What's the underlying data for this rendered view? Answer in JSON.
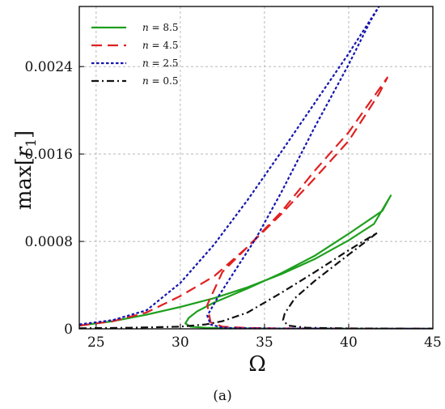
{
  "chart_data": {
    "type": "line",
    "title": "",
    "xlabel": "Ω",
    "ylabel_parts": [
      "max[",
      "r",
      "1",
      "]"
    ],
    "caption": "(a)",
    "xlim": [
      24,
      45
    ],
    "ylim": [
      0,
      0.00295
    ],
    "xticks": [
      25,
      30,
      35,
      40,
      45
    ],
    "xtick_labels": [
      "25",
      "30",
      "35",
      "40",
      "45"
    ],
    "yticks": [
      0,
      0.0008,
      0.0016,
      0.0024
    ],
    "ytick_labels": [
      "0",
      "0.0008",
      "0.0016",
      "0.0024"
    ],
    "grid": true,
    "legend_position": "top-left",
    "series": [
      {
        "name": "n = 8.5",
        "label_var": "n",
        "label_val": "= 8.5",
        "color": "#1ea01e",
        "dash": "",
        "x": [
          24,
          26,
          28,
          30,
          32,
          34,
          36,
          38,
          40,
          41.5,
          42.5,
          42,
          40,
          38,
          36,
          34,
          32,
          31,
          30.5,
          30.3,
          30.6,
          31.5,
          33,
          35,
          38,
          42,
          45
        ],
        "y": [
          3e-05,
          7e-05,
          0.00013,
          0.0002,
          0.00028,
          0.00038,
          0.0005,
          0.00064,
          0.00081,
          0.00096,
          0.00122,
          0.00108,
          0.00087,
          0.00067,
          0.00051,
          0.00037,
          0.00024,
          0.00016,
          0.0001,
          5e-05,
          2e-05,
          1e-05,
          5e-06,
          3e-06,
          2e-06,
          1e-06,
          1e-06
        ]
      },
      {
        "name": "n = 4.5",
        "label_var": "n",
        "label_val": "= 4.5",
        "color": "#e02020",
        "dash": "13 7",
        "x": [
          24,
          26,
          28,
          30,
          32,
          34,
          36,
          38,
          40,
          42.3,
          41.8,
          40,
          38,
          36,
          34,
          32.5,
          31.6,
          31.8,
          32.5,
          34,
          36,
          40,
          45
        ],
        "y": [
          3e-05,
          7e-05,
          0.00015,
          0.0003,
          0.00048,
          0.00075,
          0.00107,
          0.00145,
          0.0018,
          0.0023,
          0.00215,
          0.00172,
          0.00138,
          0.00105,
          0.00075,
          0.00052,
          0.00022,
          6e-05,
          2e-05,
          8e-06,
          4e-06,
          2e-06,
          1e-06
        ]
      },
      {
        "name": "n = 2.5",
        "label_var": "n",
        "label_val": "= 2.5",
        "color": "#1515b0",
        "dash": "3.5 2.5",
        "x": [
          24,
          26,
          28,
          30,
          32,
          34,
          36,
          38,
          40,
          41.8,
          41.3,
          40,
          38,
          36,
          34.5,
          33.2,
          32.2,
          31.6,
          31.8,
          32.5,
          34,
          36,
          40,
          45
        ],
        "y": [
          4e-05,
          8e-05,
          0.00017,
          0.00042,
          0.00077,
          0.00118,
          0.00162,
          0.00207,
          0.00252,
          0.00295,
          0.00282,
          0.00242,
          0.00185,
          0.00125,
          0.00083,
          0.00052,
          0.00028,
          0.00012,
          4e-05,
          1e-05,
          5e-06,
          3e-06,
          2e-06,
          1e-06
        ]
      },
      {
        "name": "n = 0.5",
        "label_var": "n",
        "label_val": "= 0.5",
        "color": "#111111",
        "dash": "9 4 2 4",
        "x": [
          24,
          27,
          30,
          31.5,
          32.5,
          34,
          36,
          38,
          40,
          41.7,
          41.2,
          40,
          38,
          36.8,
          36.2,
          36.1,
          36.4,
          37.5,
          40,
          42,
          45
        ],
        "y": [
          5e-06,
          1e-05,
          2e-05,
          4e-05,
          7e-05,
          0.00015,
          0.00033,
          0.00052,
          0.00072,
          0.00088,
          0.00082,
          0.00068,
          0.00044,
          0.00028,
          0.00014,
          8e-05,
          3e-05,
          1e-05,
          4e-06,
          2e-06,
          1e-06
        ]
      }
    ]
  }
}
